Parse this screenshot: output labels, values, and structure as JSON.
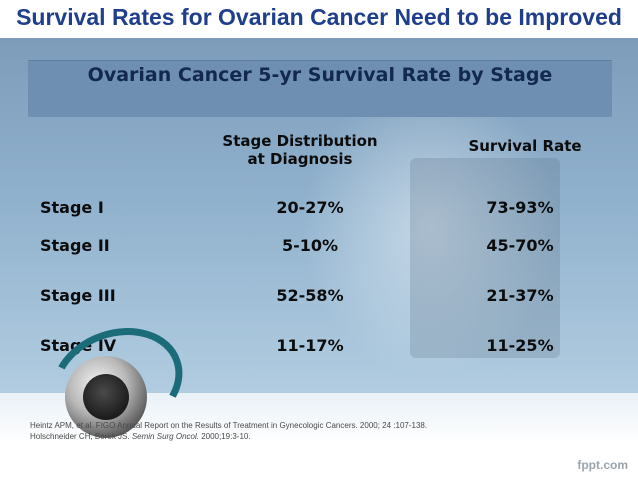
{
  "slide": {
    "title": "Survival Rates for Ovarian Cancer Need to be Improved",
    "table_header": "Ovarian Cancer 5-yr Survival Rate by Stage",
    "columns": {
      "distribution_line1": "Stage Distribution",
      "distribution_line2": "at Diagnosis",
      "survival": "Survival Rate"
    },
    "rows": [
      {
        "stage": "Stage I",
        "distribution": "20-27%",
        "survival": "73-93%"
      },
      {
        "stage": "Stage II",
        "distribution": "5-10%",
        "survival": "45-70%"
      },
      {
        "stage": "Stage III",
        "distribution": "52-58%",
        "survival": "21-37%"
      },
      {
        "stage": "Stage IV",
        "distribution": "11-17%",
        "survival": "11-25%"
      }
    ],
    "references": {
      "line1": "Heintz APM, et al. FIGO Annual Report on the Results of Treatment in Gynecologic Cancers. 2000; 24 :107-138.",
      "line2_authors": "Holschneider CH, Berek JS.",
      "line2_journal": "Semin Surg Oncol.",
      "line2_rest": "2000;19:3-10."
    },
    "logo": "fppt.com"
  }
}
